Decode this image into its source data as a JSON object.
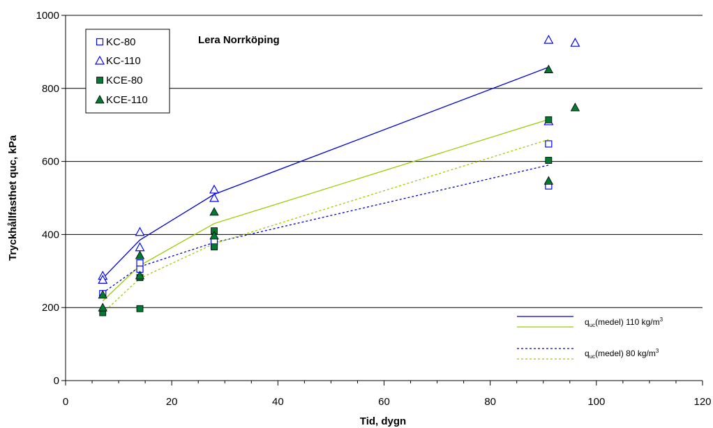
{
  "chart_data": {
    "type": "scatter",
    "annotation": "Lera Norrköping",
    "xlabel": "Tid, dygn",
    "ylabel": "Tryckhållfasthet quc, kPa",
    "xlim": [
      0,
      120
    ],
    "ylim": [
      0,
      1000
    ],
    "x_ticks": [
      0,
      20,
      40,
      60,
      80,
      100,
      120
    ],
    "y_ticks": [
      0,
      200,
      400,
      600,
      800,
      1000
    ],
    "grid": "horizontal major gridlines",
    "legend_position": "top-left",
    "series": [
      {
        "name": "KC-80",
        "marker": "square-open",
        "color": "#0000ff",
        "points": [
          [
            7,
            238
          ],
          [
            14,
            322
          ],
          [
            14,
            305
          ],
          [
            28,
            370
          ],
          [
            28,
            380
          ],
          [
            91,
            648
          ],
          [
            91,
            533
          ]
        ]
      },
      {
        "name": "KC-110",
        "marker": "triangle-open",
        "color": "#0000ff",
        "points": [
          [
            7,
            287
          ],
          [
            7,
            276
          ],
          [
            14,
            407
          ],
          [
            14,
            365
          ],
          [
            28,
            523
          ],
          [
            28,
            500
          ],
          [
            91,
            933
          ],
          [
            91,
            710
          ],
          [
            96,
            925
          ]
        ]
      },
      {
        "name": "KCE-80",
        "marker": "square-filled",
        "color": "#007a33",
        "points": [
          [
            7,
            186
          ],
          [
            14,
            197
          ],
          [
            14,
            282
          ],
          [
            28,
            410
          ],
          [
            28,
            366
          ],
          [
            91,
            714
          ],
          [
            91,
            603
          ]
        ]
      },
      {
        "name": "KCE-110",
        "marker": "triangle-filled",
        "color": "#007a33",
        "points": [
          [
            7,
            200
          ],
          [
            7,
            235
          ],
          [
            14,
            343
          ],
          [
            14,
            288
          ],
          [
            28,
            462
          ],
          [
            28,
            397
          ],
          [
            91,
            852
          ],
          [
            91,
            547
          ],
          [
            96,
            748
          ]
        ]
      }
    ],
    "trend_lines": [
      {
        "color": "#0000cc",
        "style": "solid",
        "points": [
          [
            7,
            280
          ],
          [
            14,
            385
          ],
          [
            28,
            510
          ],
          [
            91,
            858
          ]
        ]
      },
      {
        "color": "#99cc00",
        "style": "solid",
        "points": [
          [
            7,
            218
          ],
          [
            14,
            315
          ],
          [
            28,
            430
          ],
          [
            91,
            715
          ]
        ]
      },
      {
        "color": "#0000cc",
        "style": "dashed",
        "points": [
          [
            7,
            240
          ],
          [
            14,
            312
          ],
          [
            28,
            378
          ],
          [
            91,
            590
          ]
        ]
      },
      {
        "color": "#99cc00",
        "style": "dashed",
        "points": [
          [
            7,
            185
          ],
          [
            14,
            280
          ],
          [
            28,
            375
          ],
          [
            91,
            660
          ]
        ]
      }
    ],
    "trend_legend": [
      {
        "prefix": "q",
        "subscript": "uc",
        "label": "(medel) 110 kg/m",
        "superscript": "3"
      },
      {
        "prefix": "q",
        "subscript": "uc",
        "label": "(medel)  80 kg/m",
        "superscript": "3"
      }
    ]
  }
}
